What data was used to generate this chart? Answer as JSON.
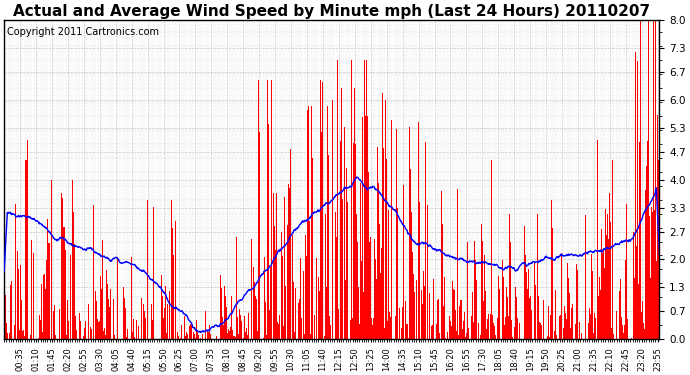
{
  "title": "Actual and Average Wind Speed by Minute mph (Last 24 Hours) 20110207",
  "copyright": "Copyright 2011 Cartronics.com",
  "yticks": [
    0.0,
    0.7,
    1.3,
    2.0,
    2.7,
    3.3,
    4.0,
    4.7,
    5.3,
    6.0,
    6.7,
    7.3,
    8.0
  ],
  "ylim": [
    0.0,
    8.0
  ],
  "bar_color": "#FF0000",
  "line_color": "#0000FF",
  "background_color": "#FFFFFF",
  "grid_color": "#BBBBBB",
  "title_fontsize": 11,
  "copyright_fontsize": 7
}
